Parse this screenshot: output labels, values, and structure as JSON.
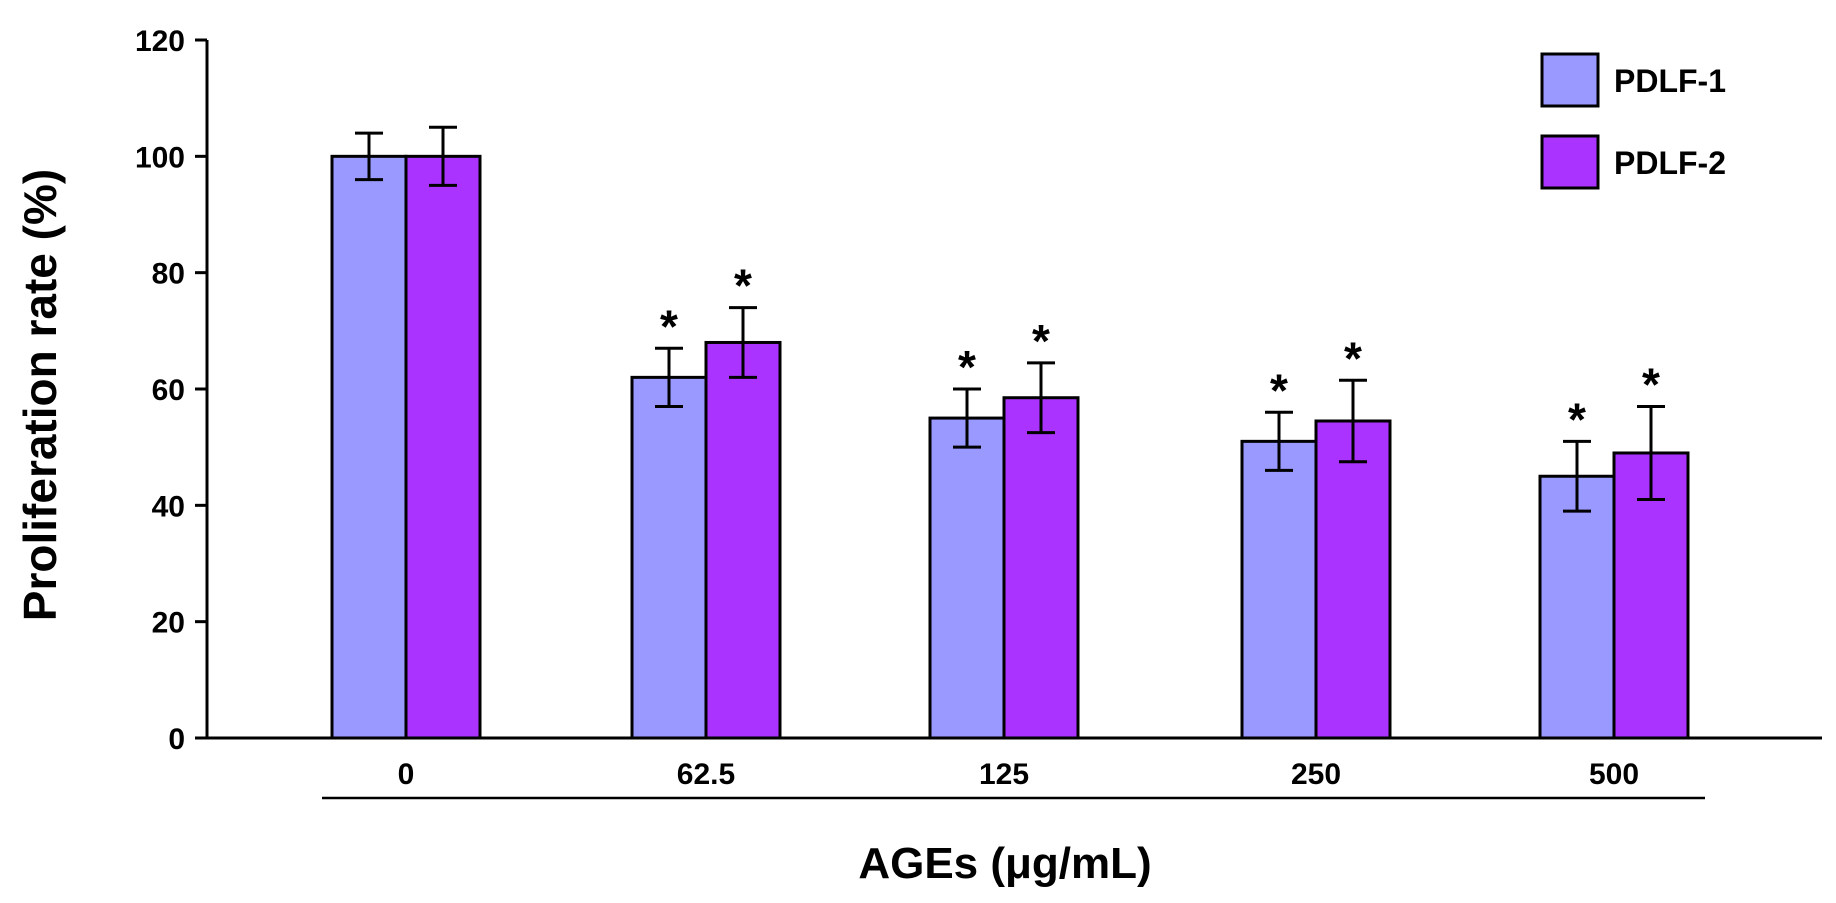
{
  "chart_data": {
    "type": "bar",
    "title": "",
    "xlabel": "AGEs (μg/mL)",
    "ylabel": "Proliferation rate (%)",
    "ylim": [
      0,
      120
    ],
    "yticks": [
      0,
      20,
      40,
      60,
      80,
      100,
      120
    ],
    "ytick_labels": [
      "0",
      "20",
      "40",
      "60",
      "80",
      "100",
      "120"
    ],
    "categories": [
      "0",
      "62.5",
      "125",
      "250",
      "500"
    ],
    "series": [
      {
        "name": "PDLF-1",
        "color": "#9999ff",
        "values": [
          100,
          62,
          55,
          51,
          45
        ],
        "errors": [
          4,
          5,
          5,
          5,
          6
        ],
        "significance": [
          "",
          "*",
          "*",
          "*",
          "*"
        ]
      },
      {
        "name": "PDLF-2",
        "color": "#aa33ff",
        "values": [
          100,
          68,
          58.5,
          54.5,
          49
        ],
        "errors": [
          5,
          6,
          6,
          7,
          8
        ],
        "significance": [
          "",
          "*",
          "*",
          "*",
          "*"
        ]
      }
    ],
    "legend": {
      "placement": "top-right"
    },
    "grid": false
  }
}
